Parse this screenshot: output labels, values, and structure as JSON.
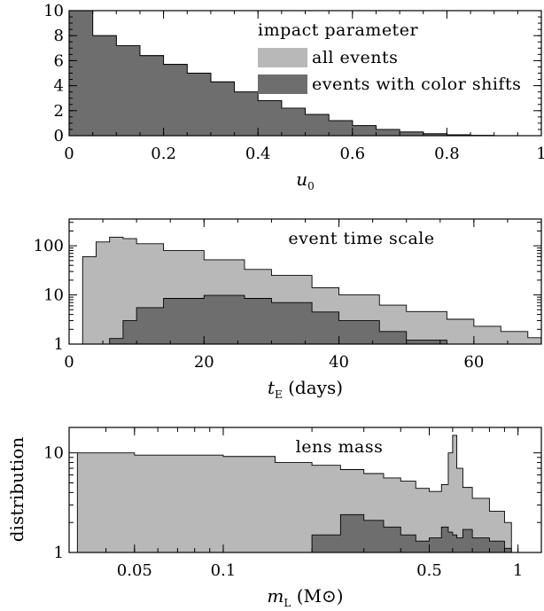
{
  "figure": {
    "ylabel": "distribution"
  },
  "chart_data": [
    {
      "type": "area",
      "annotation": "impact parameter",
      "xlabel": "u",
      "xlabel_sub": "0",
      "xlim": [
        0,
        1
      ],
      "ylim": [
        0,
        10
      ],
      "xticks": [
        "0",
        "0.2",
        "0.4",
        "0.6",
        "0.8",
        "1"
      ],
      "yticks": [
        "0",
        "2",
        "4",
        "6",
        "8",
        "10"
      ],
      "legend_position": "top-right",
      "legend": [
        {
          "name": "all events",
          "color": "#b8b8b8"
        },
        {
          "name": "events with color shifts",
          "color": "#6e6e6e"
        }
      ],
      "x": [
        0,
        0.05,
        0.1,
        0.15,
        0.2,
        0.25,
        0.3,
        0.35,
        0.4,
        0.45,
        0.5,
        0.55,
        0.6,
        0.65,
        0.7,
        0.75,
        0.8,
        0.85,
        0.9
      ],
      "series": [
        {
          "name": "all events",
          "values": [
            10,
            8.0,
            7.2,
            6.4,
            5.7,
            5.0,
            4.3,
            3.5,
            2.8,
            2.2,
            1.7,
            1.2,
            0.8,
            0.5,
            0.3,
            0.15,
            0.07,
            0.02,
            0
          ]
        },
        {
          "name": "events with color shifts",
          "values": [
            10,
            8.0,
            7.2,
            6.4,
            5.7,
            5.0,
            4.3,
            3.5,
            2.8,
            2.2,
            1.7,
            1.2,
            0.8,
            0.5,
            0.3,
            0.15,
            0.07,
            0.02,
            0
          ]
        }
      ]
    },
    {
      "type": "area",
      "annotation": "event time scale",
      "xlabel": "t",
      "xlabel_sub": "E",
      "xlabel_rest": "(days)",
      "xlim": [
        0,
        70
      ],
      "ylim": [
        1,
        350
      ],
      "yscale": "log",
      "xticks": [
        "0",
        "20",
        "40",
        "60"
      ],
      "yticks": [
        "1",
        "10",
        "100"
      ],
      "x": [
        0,
        2,
        4,
        6,
        8,
        10,
        14,
        20,
        26,
        30,
        36,
        40,
        46,
        50,
        56,
        60,
        64,
        68,
        70
      ],
      "series": [
        {
          "name": "all events",
          "values": [
            1,
            60,
            120,
            150,
            140,
            110,
            80,
            52,
            33,
            25,
            14,
            10,
            6.2,
            4.6,
            3.2,
            2.3,
            1.8,
            1.35,
            1.2
          ]
        },
        {
          "name": "events with color shifts",
          "values": [
            1,
            1,
            1,
            1.3,
            3,
            5.5,
            8.5,
            9.8,
            8.5,
            7,
            4.5,
            3.0,
            1.8,
            1.2,
            1,
            1,
            1,
            1,
            1
          ]
        }
      ]
    },
    {
      "type": "area",
      "annotation": "lens mass",
      "xlabel": "m",
      "xlabel_sub": "L",
      "xlabel_rest": "(M⊙)",
      "xscale": "log",
      "xlim": [
        0.03,
        1.2
      ],
      "ylim": [
        1,
        18
      ],
      "yscale": "log",
      "xticks": [
        "0.05",
        "0.1",
        "0.5",
        "1"
      ],
      "xtick_values": [
        0.05,
        0.1,
        0.5,
        1
      ],
      "yticks": [
        "1",
        "10"
      ],
      "x": [
        0.032,
        0.04,
        0.05,
        0.07,
        0.1,
        0.15,
        0.2,
        0.25,
        0.3,
        0.35,
        0.4,
        0.45,
        0.5,
        0.55,
        0.58,
        0.6,
        0.62,
        0.65,
        0.7,
        0.8,
        0.9,
        0.95
      ],
      "series": [
        {
          "name": "all events",
          "values": [
            10,
            10,
            9.5,
            9.5,
            9.2,
            8.0,
            7.5,
            6.8,
            6.2,
            5.6,
            5.2,
            4.4,
            4.1,
            4.8,
            10,
            15,
            7,
            4.5,
            3.5,
            2.6,
            2.0,
            1.6
          ]
        },
        {
          "name": "events with color shifts",
          "values": [
            1,
            1,
            1,
            1,
            1,
            1,
            1.5,
            2.4,
            2.1,
            1.8,
            1.5,
            1.3,
            1.4,
            1.8,
            1.6,
            1.5,
            1.4,
            1.7,
            1.4,
            1.3,
            1.1,
            1
          ]
        }
      ]
    }
  ]
}
